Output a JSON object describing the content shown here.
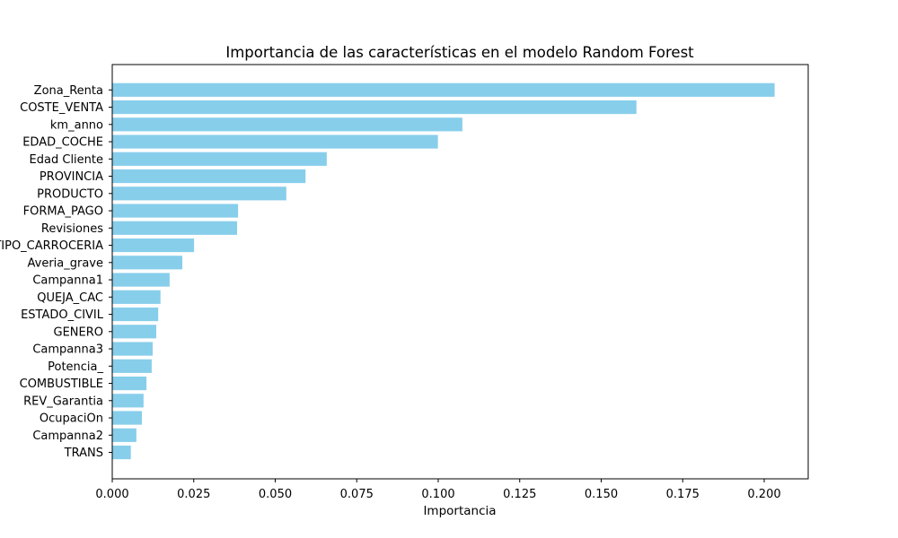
{
  "chart_data": {
    "type": "bar",
    "orientation": "horizontal",
    "title": "Importancia de las características en el modelo Random Forest",
    "xlabel": "Importancia",
    "ylabel": "",
    "xlim": [
      0,
      0.2135
    ],
    "xticks": [
      0.0,
      0.025,
      0.05,
      0.075,
      0.1,
      0.125,
      0.15,
      0.175,
      0.2
    ],
    "xtick_labels": [
      "0.000",
      "0.025",
      "0.050",
      "0.075",
      "0.100",
      "0.125",
      "0.150",
      "0.175",
      "0.200"
    ],
    "categories": [
      "Zona_Renta",
      "COSTE_VENTA",
      "km_anno",
      "EDAD_COCHE",
      "Edad Cliente",
      "PROVINCIA",
      "PRODUCTO",
      "FORMA_PAGO",
      "Revisiones",
      "TIPO_CARROCERIA",
      "Averia_grave",
      "Campanna1",
      "QUEJA_CAC",
      "ESTADO_CIVIL",
      "GENERO",
      "Campanna3",
      "Potencia_",
      "COMBUSTIBLE",
      "REV_Garantia",
      "OcupaciOn",
      "Campanna2",
      "TRANS"
    ],
    "values": [
      0.2032,
      0.1608,
      0.1074,
      0.0999,
      0.0658,
      0.0593,
      0.0534,
      0.0386,
      0.0383,
      0.0251,
      0.0215,
      0.0176,
      0.0148,
      0.0141,
      0.0135,
      0.0124,
      0.0121,
      0.0105,
      0.0096,
      0.0091,
      0.0074,
      0.0057
    ],
    "bar_color": "#87CEEB",
    "grid": false,
    "legend": null
  }
}
